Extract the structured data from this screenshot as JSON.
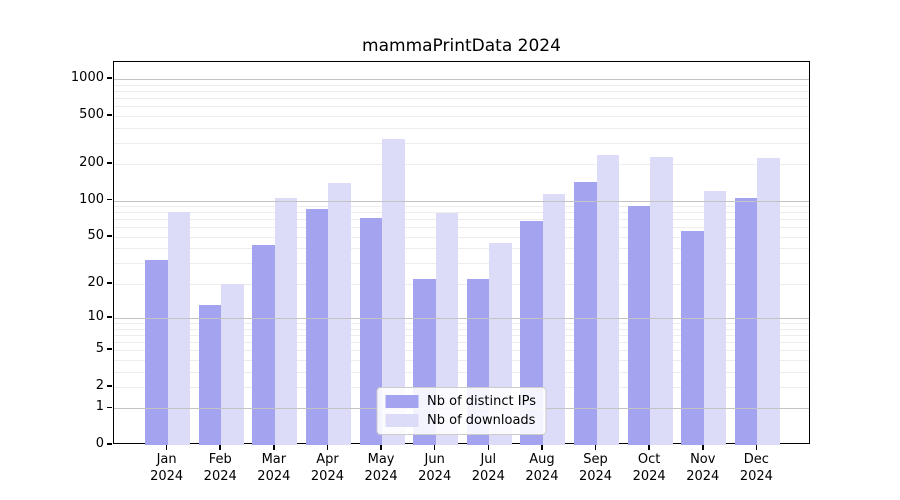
{
  "title": "mammaPrintData 2024",
  "chart_data": {
    "type": "bar",
    "title": "mammaPrintData 2024",
    "scale": "log10(1+y)",
    "grid": "horizontal, minor log decades",
    "legend_position": "bottom-center",
    "categories": [
      "Jan",
      "Feb",
      "Mar",
      "Apr",
      "May",
      "Jun",
      "Jul",
      "Aug",
      "Sep",
      "Oct",
      "Nov",
      "Dec"
    ],
    "year": "2024",
    "series": [
      {
        "name": "Nb of distinct IPs",
        "color": "#a3a3f0",
        "values": [
          32,
          13,
          43,
          85,
          72,
          22,
          22,
          68,
          143,
          90,
          56,
          105
        ]
      },
      {
        "name": "Nb of downloads",
        "color": "#dcdcf8",
        "values": [
          81,
          20,
          105,
          140,
          325,
          79,
          44,
          113,
          240,
          230,
          120,
          225
        ]
      }
    ],
    "y_ticks": [
      0,
      1,
      2,
      5,
      10,
      20,
      50,
      100,
      200,
      500,
      1000
    ],
    "ylim": [
      0,
      1400
    ],
    "xlabel": "",
    "ylabel": ""
  },
  "colors": {
    "bar_dark": "#a3a3f0",
    "bar_light": "#dcdcf8",
    "grid_major": "#c3c3c3",
    "grid_minor": "#ededed",
    "spine": "#000000",
    "background": "#ffffff"
  }
}
